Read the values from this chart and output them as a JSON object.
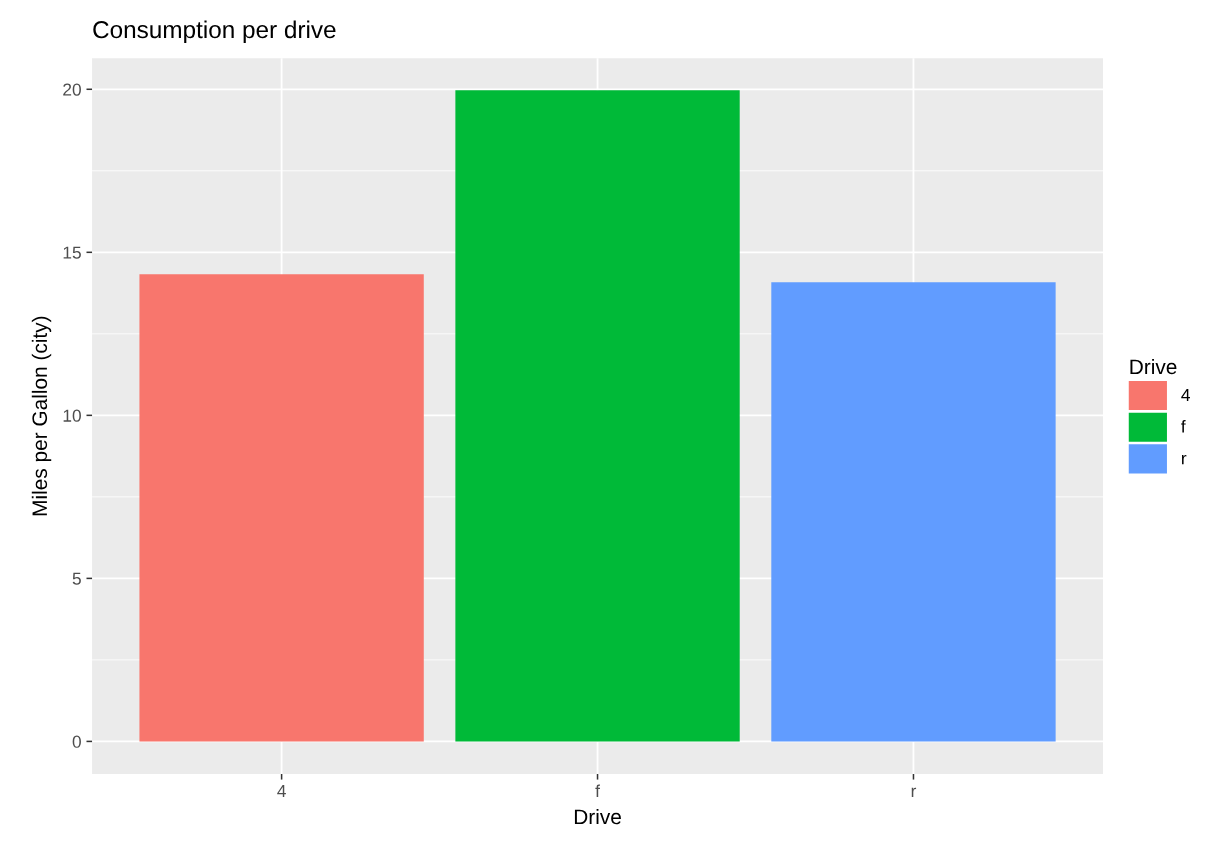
{
  "chart_data": {
    "type": "bar",
    "title": "Consumption per drive",
    "xlabel": "Drive",
    "ylabel": "Miles per Gallon (city)",
    "legend_title": "Drive",
    "categories": [
      "4",
      "f",
      "r"
    ],
    "series": [
      {
        "name": "4",
        "color": "#f8766d",
        "values": [
          14.33,
          null,
          null
        ]
      },
      {
        "name": "f",
        "color": "#00ba38",
        "values": [
          null,
          19.97,
          null
        ]
      },
      {
        "name": "r",
        "color": "#619cff",
        "values": [
          null,
          null,
          14.08
        ]
      }
    ],
    "ylim": [
      -1,
      20.95
    ],
    "yticks": [
      0,
      5,
      10,
      15,
      20
    ],
    "grid": true,
    "legend": "right"
  }
}
